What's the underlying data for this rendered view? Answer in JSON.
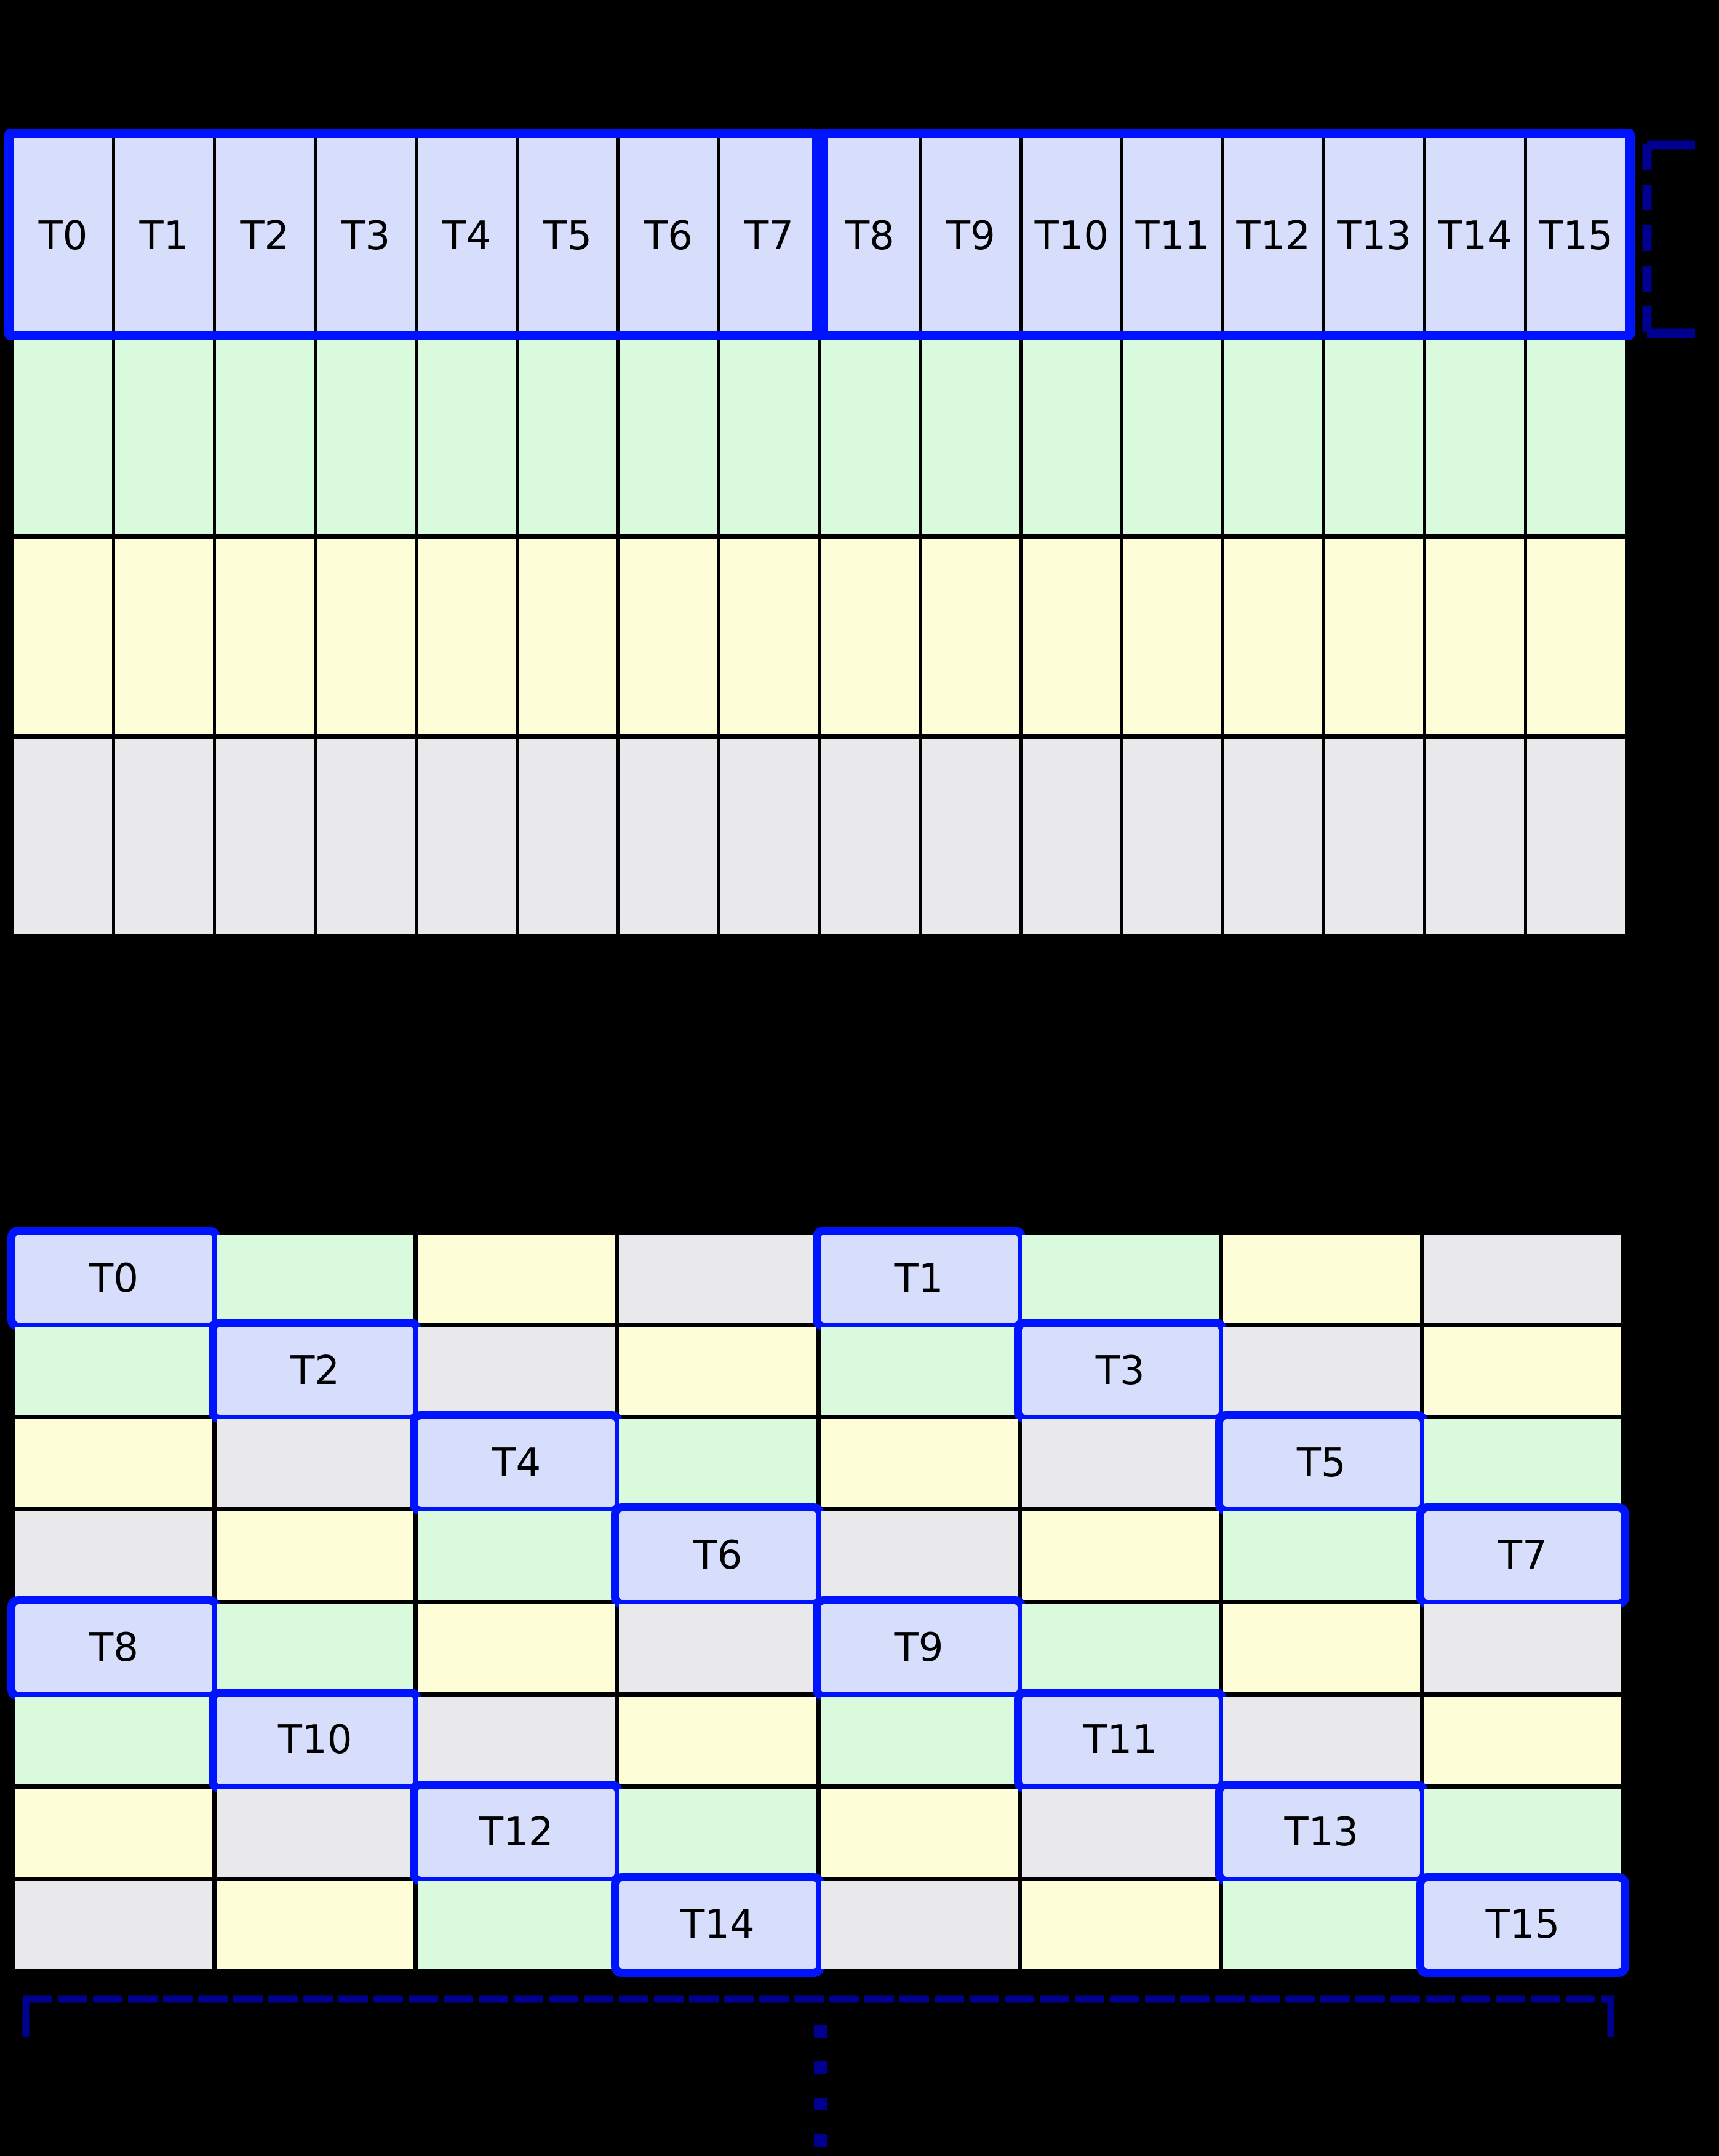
{
  "colors": {
    "thread_fill": "#d6defb",
    "green": "#d9fadc",
    "yellow": "#fdfdd8",
    "gray": "#e9e9eb",
    "outline_blue": "#0013ff",
    "bracket_navy": "#000090",
    "grid_line": "#000000",
    "background": "#000000",
    "label_text": "#000000"
  },
  "top_grid": {
    "thread_row": [
      "T0",
      "T1",
      "T2",
      "T3",
      "T4",
      "T5",
      "T6",
      "T7",
      "T8",
      "T9",
      "T10",
      "T11",
      "T12",
      "T13",
      "T14",
      "T15"
    ],
    "color_rows": [
      "green",
      "yellow",
      "gray"
    ]
  },
  "bottom_grid": {
    "colors": [
      [
        "thread",
        "green",
        "yellow",
        "gray",
        "thread",
        "green",
        "yellow",
        "gray"
      ],
      [
        "green",
        "thread",
        "gray",
        "yellow",
        "green",
        "thread",
        "gray",
        "yellow"
      ],
      [
        "yellow",
        "gray",
        "thread",
        "green",
        "yellow",
        "gray",
        "thread",
        "green"
      ],
      [
        "gray",
        "yellow",
        "green",
        "thread",
        "gray",
        "yellow",
        "green",
        "thread"
      ],
      [
        "thread",
        "green",
        "yellow",
        "gray",
        "thread",
        "green",
        "yellow",
        "gray"
      ],
      [
        "green",
        "thread",
        "gray",
        "yellow",
        "green",
        "thread",
        "gray",
        "yellow"
      ],
      [
        "yellow",
        "gray",
        "thread",
        "green",
        "yellow",
        "gray",
        "thread",
        "green"
      ],
      [
        "gray",
        "yellow",
        "green",
        "thread",
        "gray",
        "yellow",
        "green",
        "thread"
      ]
    ],
    "labels": [
      [
        "T0",
        "",
        "",
        "",
        "T1",
        "",
        "",
        ""
      ],
      [
        "",
        "T2",
        "",
        "",
        "",
        "T3",
        "",
        ""
      ],
      [
        "",
        "",
        "T4",
        "",
        "",
        "",
        "T5",
        ""
      ],
      [
        "",
        "",
        "",
        "T6",
        "",
        "",
        "",
        "T7"
      ],
      [
        "T8",
        "",
        "",
        "",
        "T9",
        "",
        "",
        ""
      ],
      [
        "",
        "T10",
        "",
        "",
        "",
        "T11",
        "",
        ""
      ],
      [
        "",
        "",
        "T12",
        "",
        "",
        "",
        "T13",
        ""
      ],
      [
        "",
        "",
        "",
        "T14",
        "",
        "",
        "",
        "T15"
      ]
    ]
  }
}
